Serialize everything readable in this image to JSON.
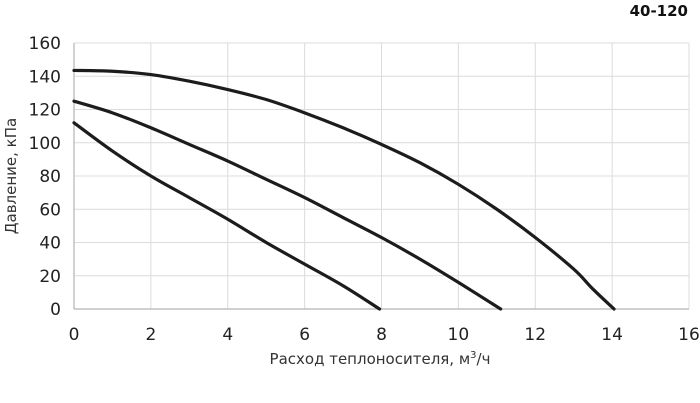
{
  "model_label": "40-120",
  "chart_data": {
    "type": "line",
    "title": "",
    "xlabel_prefix": "Расход теплоносителя, м",
    "xlabel_sup": "3",
    "xlabel_suffix": "/ч",
    "ylabel": "Давление, кПа",
    "xlim": [
      0,
      16
    ],
    "ylim": [
      0,
      160
    ],
    "x_ticks": [
      0,
      2,
      4,
      6,
      8,
      10,
      12,
      14,
      16
    ],
    "y_ticks": [
      0,
      20,
      40,
      60,
      80,
      100,
      120,
      140,
      160
    ],
    "grid": true,
    "series": [
      {
        "x": [
          0,
          1,
          2,
          3,
          4,
          5,
          6,
          7,
          8,
          9,
          10,
          11,
          12,
          13,
          13.5,
          14.05
        ],
        "y": [
          143.5,
          143,
          141,
          137,
          132,
          126,
          118,
          109,
          99,
          88,
          75,
          60,
          43,
          24,
          12,
          0
        ]
      },
      {
        "x": [
          0,
          1,
          2,
          3,
          4,
          5,
          6,
          7,
          8,
          9,
          10,
          11.1
        ],
        "y": [
          125,
          118,
          109,
          99,
          89,
          78,
          67,
          55,
          43,
          30,
          16,
          0
        ]
      },
      {
        "x": [
          0,
          1,
          2,
          3,
          4,
          5,
          6,
          7,
          7.95
        ],
        "y": [
          112,
          95,
          80,
          67,
          54,
          40,
          27,
          14,
          0
        ]
      }
    ]
  }
}
